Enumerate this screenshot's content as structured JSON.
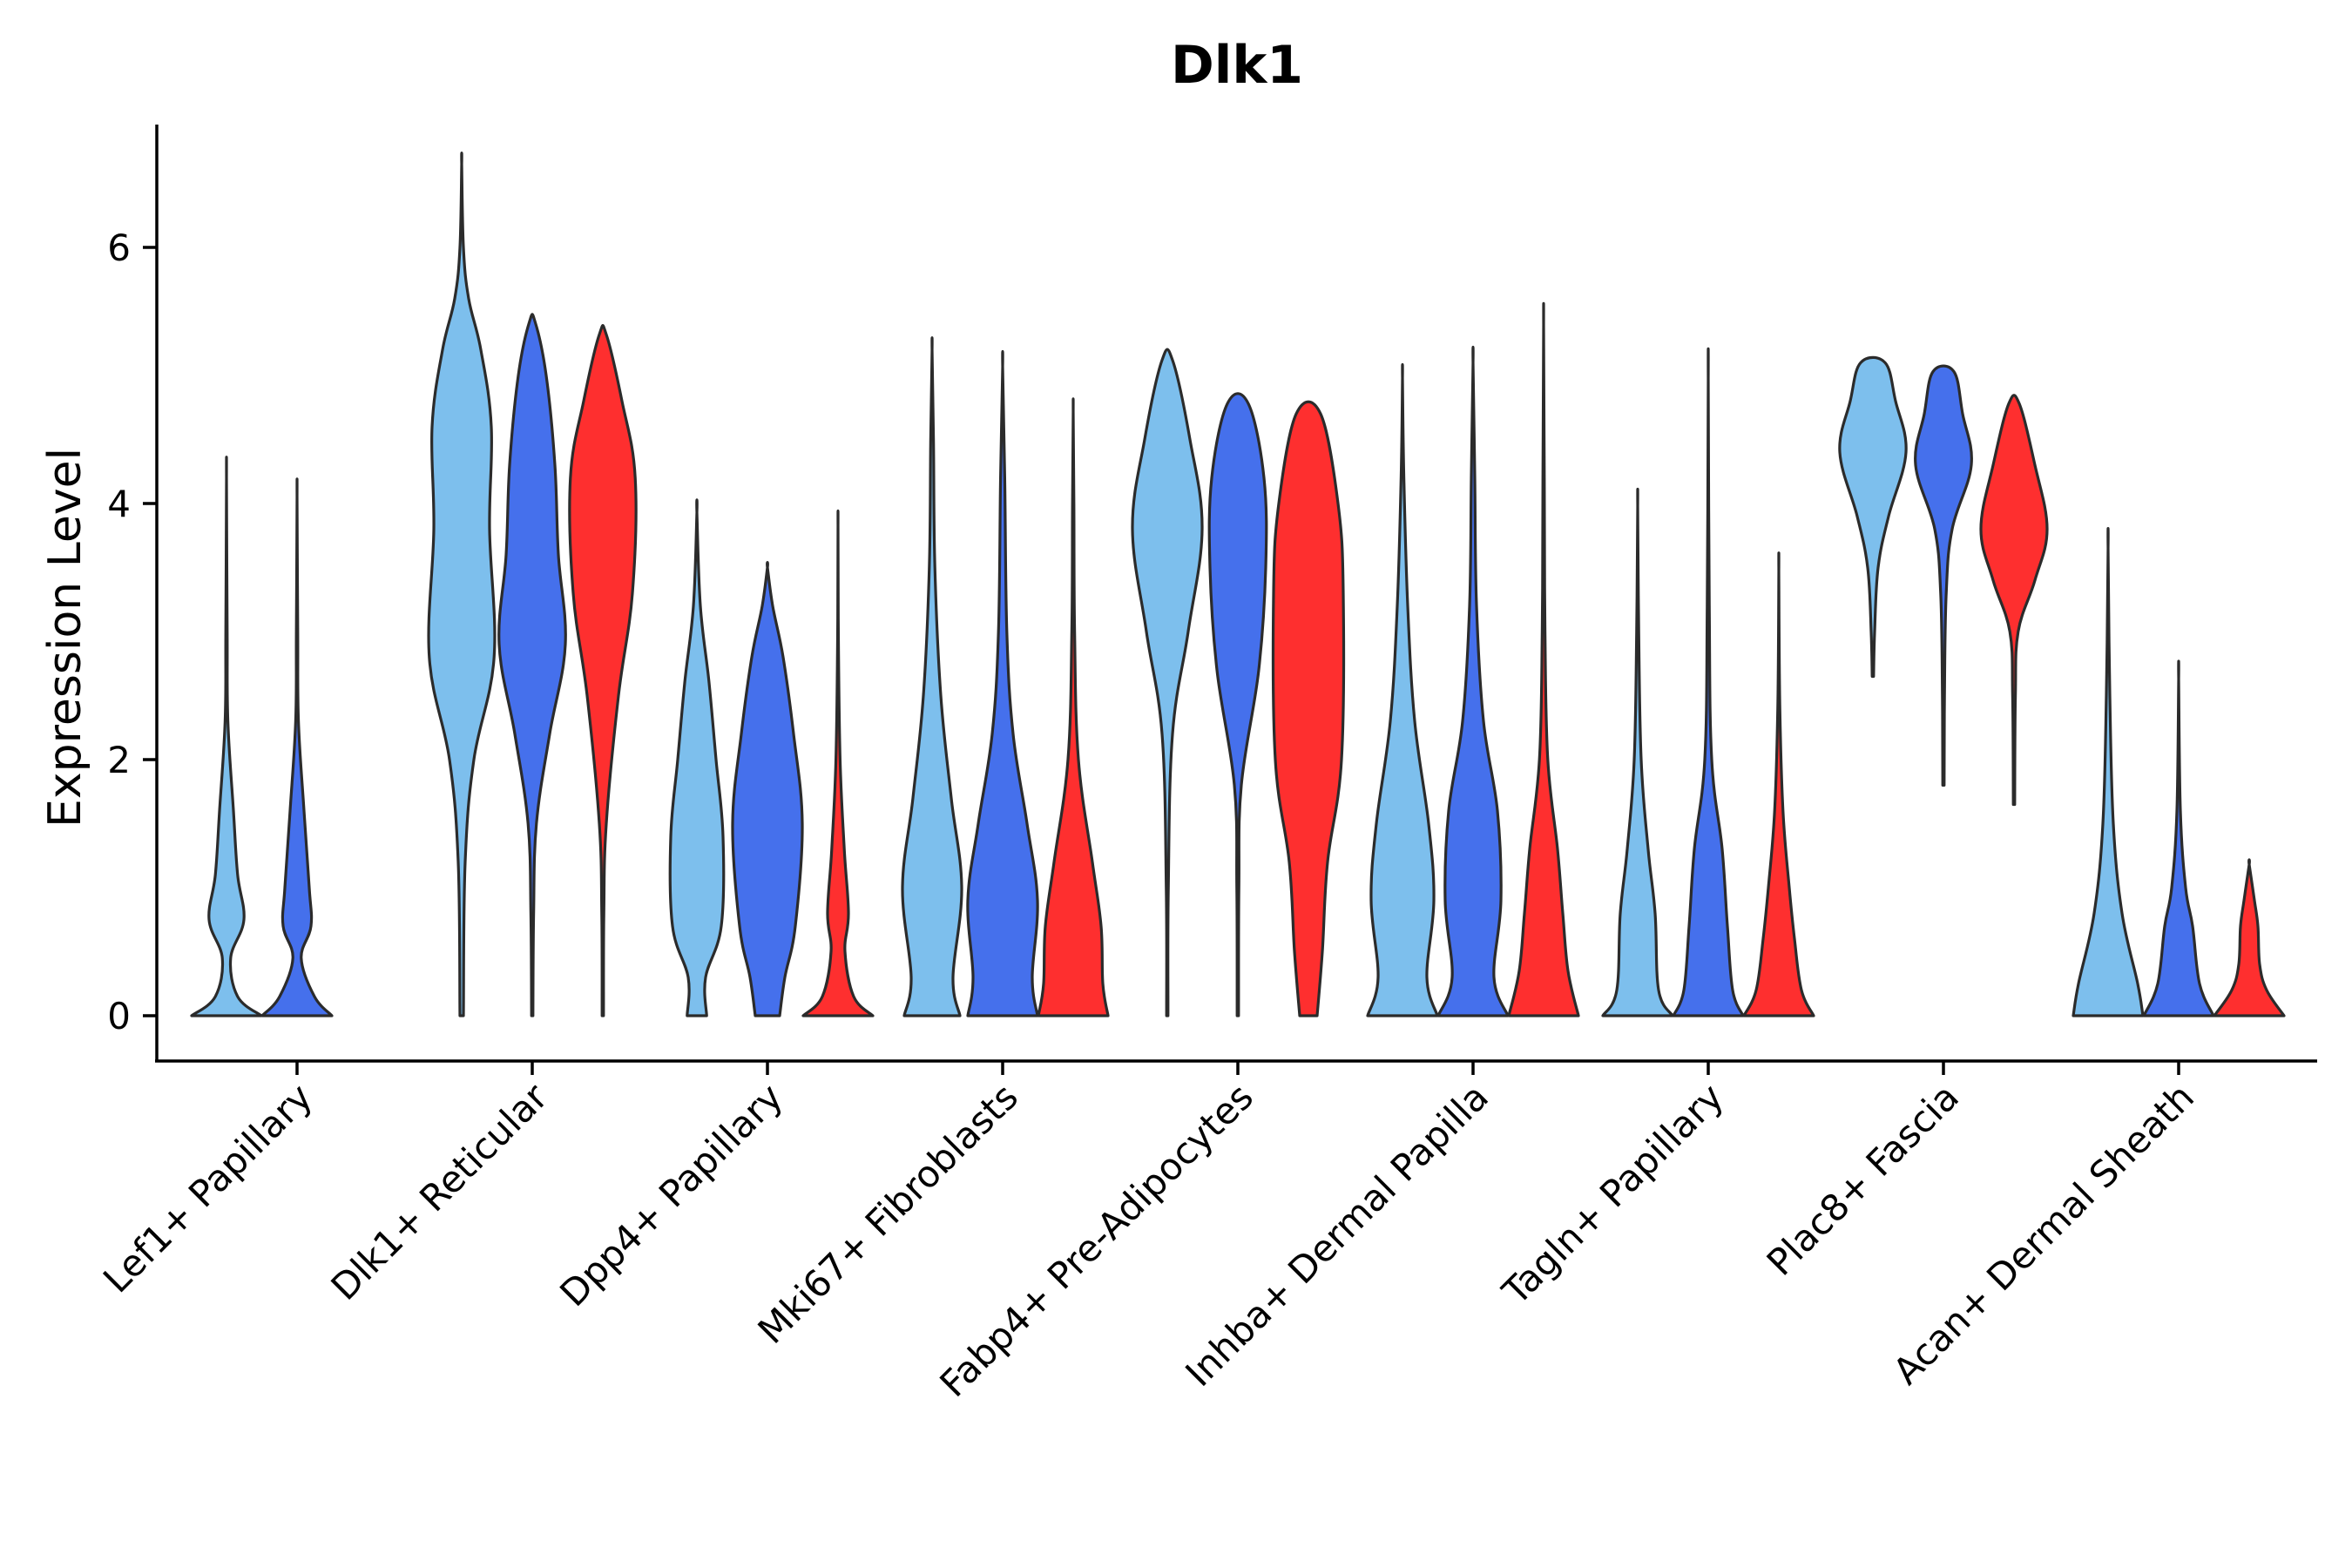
{
  "chart_data": {
    "type": "violin",
    "title": "Dlk1",
    "xlabel": "",
    "ylabel": "Expression Level",
    "ylim": [
      -0.33,
      7.0
    ],
    "yticks": [
      "0",
      "2",
      "4",
      "6"
    ],
    "categories": [
      "Lef1+ Papillary",
      "Dlk1+ Reticular",
      "Dpp4+ Papillary",
      "Mki67+ Fibroblasts",
      "Fabp4+ Pre-Adipocytes",
      "Inhba+ Dermal Papilla",
      "Tagln+ Papillary",
      "Plac8+ Fascia",
      "Acan+ Dermal Sheath"
    ],
    "group_colors": [
      "#7dbfed",
      "#4570ec",
      "#fe2f2f"
    ],
    "violins": [
      {
        "category": 0,
        "group": 0,
        "max": 4.2,
        "min": 0,
        "profile": [
          [
            0,
            1
          ],
          [
            0.15,
            0.32
          ],
          [
            0.45,
            0.12
          ],
          [
            0.75,
            0.5
          ],
          [
            1.1,
            0.32
          ],
          [
            1.6,
            0.2
          ],
          [
            2.3,
            0.04
          ],
          [
            3.0,
            0.02
          ],
          [
            4.2,
            0
          ]
        ]
      },
      {
        "category": 0,
        "group": 1,
        "max": 4.05,
        "min": 0,
        "profile": [
          [
            0,
            1
          ],
          [
            0.15,
            0.5
          ],
          [
            0.45,
            0.12
          ],
          [
            0.7,
            0.4
          ],
          [
            1.0,
            0.35
          ],
          [
            1.6,
            0.2
          ],
          [
            2.3,
            0.04
          ],
          [
            3.0,
            0.02
          ],
          [
            4.05,
            0
          ]
        ]
      },
      {
        "category": 1,
        "group": 0,
        "max": 6.65,
        "min": 0,
        "profile": [
          [
            0,
            0.05
          ],
          [
            1.2,
            0.1
          ],
          [
            2.0,
            0.35
          ],
          [
            2.8,
            0.93
          ],
          [
            3.8,
            0.8
          ],
          [
            4.6,
            0.85
          ],
          [
            5.2,
            0.55
          ],
          [
            5.6,
            0.2
          ],
          [
            6.0,
            0.05
          ],
          [
            6.65,
            0
          ]
        ]
      },
      {
        "category": 1,
        "group": 1,
        "max": 5.42,
        "min": 0,
        "profile": [
          [
            0,
            0.02
          ],
          [
            0.8,
            0.04
          ],
          [
            1.5,
            0.12
          ],
          [
            2.2,
            0.5
          ],
          [
            2.9,
            0.95
          ],
          [
            3.6,
            0.75
          ],
          [
            4.3,
            0.65
          ],
          [
            5.0,
            0.4
          ],
          [
            5.42,
            0.08
          ]
        ]
      },
      {
        "category": 1,
        "group": 2,
        "max": 5.32,
        "min": 0,
        "profile": [
          [
            0,
            0.02
          ],
          [
            0.8,
            0.03
          ],
          [
            1.5,
            0.1
          ],
          [
            2.5,
            0.45
          ],
          [
            3.3,
            0.85
          ],
          [
            4.2,
            0.93
          ],
          [
            4.8,
            0.55
          ],
          [
            5.32,
            0.1
          ]
        ]
      },
      {
        "category": 2,
        "group": 0,
        "max": 3.93,
        "min": 0,
        "profile": [
          [
            0,
            0.28
          ],
          [
            0.3,
            0.25
          ],
          [
            0.7,
            0.7
          ],
          [
            1.4,
            0.75
          ],
          [
            2.0,
            0.55
          ],
          [
            2.6,
            0.35
          ],
          [
            3.2,
            0.1
          ],
          [
            3.93,
            0
          ]
        ]
      },
      {
        "category": 2,
        "group": 1,
        "max": 3.5,
        "min": 0,
        "profile": [
          [
            0,
            0.35
          ],
          [
            0.3,
            0.5
          ],
          [
            0.7,
            0.8
          ],
          [
            1.5,
            1.0
          ],
          [
            2.2,
            0.75
          ],
          [
            2.8,
            0.45
          ],
          [
            3.2,
            0.15
          ],
          [
            3.5,
            0
          ]
        ]
      },
      {
        "category": 2,
        "group": 2,
        "max": 3.83,
        "min": 0,
        "profile": [
          [
            0,
            1
          ],
          [
            0.15,
            0.45
          ],
          [
            0.5,
            0.2
          ],
          [
            0.8,
            0.3
          ],
          [
            1.3,
            0.18
          ],
          [
            2.0,
            0.06
          ],
          [
            3.0,
            0.01
          ],
          [
            3.83,
            0
          ]
        ]
      },
      {
        "category": 3,
        "group": 0,
        "max": 5.2,
        "min": 0,
        "profile": [
          [
            0,
            0.8
          ],
          [
            0.3,
            0.6
          ],
          [
            1.0,
            0.85
          ],
          [
            1.7,
            0.55
          ],
          [
            2.5,
            0.25
          ],
          [
            3.5,
            0.08
          ],
          [
            4.5,
            0.04
          ],
          [
            5.2,
            0
          ]
        ]
      },
      {
        "category": 3,
        "group": 1,
        "max": 5.07,
        "min": 0,
        "profile": [
          [
            0,
            1
          ],
          [
            0.3,
            0.85
          ],
          [
            0.9,
            1.0
          ],
          [
            1.5,
            0.7
          ],
          [
            2.2,
            0.3
          ],
          [
            3.0,
            0.12
          ],
          [
            4.2,
            0.06
          ],
          [
            5.07,
            0
          ]
        ]
      },
      {
        "category": 3,
        "group": 2,
        "max": 4.72,
        "min": 0,
        "profile": [
          [
            0,
            1
          ],
          [
            0.25,
            0.85
          ],
          [
            0.7,
            0.8
          ],
          [
            1.2,
            0.55
          ],
          [
            2.0,
            0.15
          ],
          [
            3.0,
            0.04
          ],
          [
            4.0,
            0.02
          ],
          [
            4.72,
            0
          ]
        ]
      },
      {
        "category": 4,
        "group": 0,
        "max": 5.12,
        "min": 0,
        "profile": [
          [
            0,
            0.02
          ],
          [
            1.0,
            0.03
          ],
          [
            2.2,
            0.15
          ],
          [
            3.0,
            0.6
          ],
          [
            3.8,
            1.0
          ],
          [
            4.5,
            0.65
          ],
          [
            5.12,
            0.15
          ]
        ]
      },
      {
        "category": 4,
        "group": 1,
        "max": 4.78,
        "min": 0,
        "profile": [
          [
            0,
            0.02
          ],
          [
            1.0,
            0.03
          ],
          [
            1.8,
            0.1
          ],
          [
            2.7,
            0.6
          ],
          [
            3.5,
            0.8
          ],
          [
            4.2,
            0.75
          ],
          [
            4.78,
            0.3
          ]
        ]
      },
      {
        "category": 4,
        "group": 2,
        "max": 4.7,
        "min": 0,
        "profile": [
          [
            0,
            0.25
          ],
          [
            0.5,
            0.4
          ],
          [
            1.2,
            0.55
          ],
          [
            2.0,
            0.95
          ],
          [
            3.3,
            1.0
          ],
          [
            4.0,
            0.85
          ],
          [
            4.7,
            0.35
          ]
        ]
      },
      {
        "category": 5,
        "group": 0,
        "max": 4.98,
        "min": 0,
        "profile": [
          [
            0,
            1
          ],
          [
            0.3,
            0.7
          ],
          [
            0.9,
            0.9
          ],
          [
            1.5,
            0.75
          ],
          [
            2.3,
            0.35
          ],
          [
            3.2,
            0.15
          ],
          [
            4.2,
            0.04
          ],
          [
            4.98,
            0
          ]
        ]
      },
      {
        "category": 5,
        "group": 1,
        "max": 5.1,
        "min": 0,
        "profile": [
          [
            0,
            1
          ],
          [
            0.3,
            0.6
          ],
          [
            0.9,
            0.8
          ],
          [
            1.6,
            0.7
          ],
          [
            2.3,
            0.3
          ],
          [
            3.2,
            0.1
          ],
          [
            4.2,
            0.05
          ],
          [
            5.1,
            0
          ]
        ]
      },
      {
        "category": 5,
        "group": 2,
        "max": 5.4,
        "min": 0,
        "profile": [
          [
            0,
            1
          ],
          [
            0.35,
            0.7
          ],
          [
            0.8,
            0.55
          ],
          [
            1.3,
            0.4
          ],
          [
            2.0,
            0.12
          ],
          [
            3.0,
            0.04
          ],
          [
            4.2,
            0.02
          ],
          [
            5.4,
            0
          ]
        ]
      },
      {
        "category": 6,
        "group": 0,
        "max": 3.98,
        "min": 0,
        "profile": [
          [
            0,
            1
          ],
          [
            0.2,
            0.6
          ],
          [
            0.8,
            0.5
          ],
          [
            1.3,
            0.3
          ],
          [
            2.0,
            0.1
          ],
          [
            3.0,
            0.03
          ],
          [
            3.98,
            0
          ]
        ]
      },
      {
        "category": 6,
        "group": 1,
        "max": 4.97,
        "min": 0,
        "profile": [
          [
            0,
            1
          ],
          [
            0.2,
            0.7
          ],
          [
            0.7,
            0.55
          ],
          [
            1.3,
            0.4
          ],
          [
            2.0,
            0.1
          ],
          [
            3.2,
            0.03
          ],
          [
            4.97,
            0
          ]
        ]
      },
      {
        "category": 6,
        "group": 2,
        "max": 3.47,
        "min": 0,
        "profile": [
          [
            0,
            1
          ],
          [
            0.2,
            0.65
          ],
          [
            0.6,
            0.45
          ],
          [
            1.0,
            0.3
          ],
          [
            1.6,
            0.12
          ],
          [
            2.4,
            0.03
          ],
          [
            3.47,
            0
          ]
        ]
      },
      {
        "category": 7,
        "group": 0,
        "max": 5.1,
        "min": 2.65,
        "profile": [
          [
            2.65,
            0.02
          ],
          [
            3.0,
            0.05
          ],
          [
            3.5,
            0.15
          ],
          [
            3.9,
            0.45
          ],
          [
            4.4,
            0.95
          ],
          [
            4.8,
            0.65
          ],
          [
            5.1,
            0.35
          ]
        ]
      },
      {
        "category": 7,
        "group": 1,
        "max": 5.03,
        "min": 1.8,
        "profile": [
          [
            1.8,
            0.02
          ],
          [
            2.5,
            0.03
          ],
          [
            3.3,
            0.08
          ],
          [
            3.8,
            0.25
          ],
          [
            4.3,
            0.8
          ],
          [
            4.7,
            0.55
          ],
          [
            5.03,
            0.3
          ]
        ]
      },
      {
        "category": 7,
        "group": 2,
        "max": 4.78,
        "min": 1.65,
        "profile": [
          [
            1.65,
            0.02
          ],
          [
            2.5,
            0.04
          ],
          [
            3.0,
            0.12
          ],
          [
            3.4,
            0.6
          ],
          [
            3.8,
            0.95
          ],
          [
            4.3,
            0.6
          ],
          [
            4.78,
            0.15
          ]
        ]
      },
      {
        "category": 8,
        "group": 0,
        "max": 3.65,
        "min": 0,
        "profile": [
          [
            0,
            1
          ],
          [
            0.25,
            0.85
          ],
          [
            0.8,
            0.4
          ],
          [
            1.5,
            0.15
          ],
          [
            2.5,
            0.05
          ],
          [
            3.65,
            0
          ]
        ]
      },
      {
        "category": 8,
        "group": 1,
        "max": 2.63,
        "min": 0,
        "profile": [
          [
            0,
            1
          ],
          [
            0.25,
            0.6
          ],
          [
            0.7,
            0.4
          ],
          [
            1.0,
            0.2
          ],
          [
            1.6,
            0.05
          ],
          [
            2.63,
            0
          ]
        ]
      },
      {
        "category": 8,
        "group": 2,
        "max": 1.18,
        "min": 0,
        "profile": [
          [
            0,
            1
          ],
          [
            0.2,
            0.5
          ],
          [
            0.4,
            0.3
          ],
          [
            0.7,
            0.25
          ],
          [
            0.9,
            0.15
          ],
          [
            1.18,
            0
          ]
        ]
      }
    ]
  }
}
